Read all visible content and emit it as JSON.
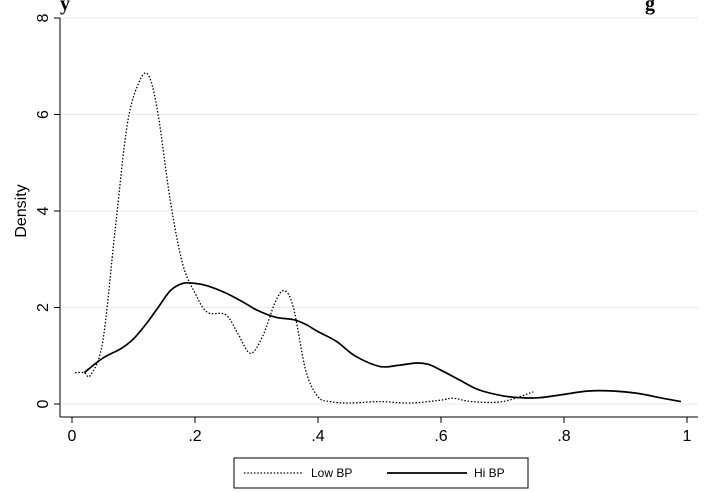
{
  "chart_data": {
    "type": "line",
    "title": "y g",
    "xlabel": "",
    "ylabel": "Density",
    "xlim": [
      0,
      1
    ],
    "ylim": [
      0,
      8
    ],
    "x_ticks": [
      {
        "value": 0,
        "label": "0"
      },
      {
        "value": 0.2,
        "label": ".2"
      },
      {
        "value": 0.4,
        "label": ".4"
      },
      {
        "value": 0.6,
        "label": ".6"
      },
      {
        "value": 0.8,
        "label": ".8"
      },
      {
        "value": 1,
        "label": "1"
      }
    ],
    "y_ticks": [
      {
        "value": 0,
        "label": "0"
      },
      {
        "value": 2,
        "label": "2"
      },
      {
        "value": 4,
        "label": "4"
      },
      {
        "value": 6,
        "label": "6"
      },
      {
        "value": 8,
        "label": "8"
      }
    ],
    "grid": "horizontal",
    "legend_position": "bottom",
    "series": [
      {
        "name": "Low BP",
        "line_style": "dotted",
        "color": "#000000",
        "x": [
          0.005,
          0.02,
          0.03,
          0.05,
          0.07,
          0.09,
          0.11,
          0.125,
          0.14,
          0.16,
          0.18,
          0.2,
          0.22,
          0.25,
          0.27,
          0.29,
          0.31,
          0.33,
          0.345,
          0.36,
          0.38,
          0.4,
          0.42,
          0.45,
          0.5,
          0.55,
          0.6,
          0.62,
          0.65,
          0.7,
          0.75
        ],
        "y": [
          0.65,
          0.65,
          0.6,
          1.3,
          3.6,
          5.8,
          6.7,
          6.8,
          6.0,
          4.2,
          2.9,
          2.3,
          1.9,
          1.85,
          1.45,
          1.05,
          1.4,
          2.1,
          2.35,
          2.0,
          0.7,
          0.15,
          0.05,
          0.02,
          0.05,
          0.02,
          0.08,
          0.12,
          0.05,
          0.05,
          0.25
        ]
      },
      {
        "name": "Hi BP",
        "line_style": "solid",
        "color": "#000000",
        "x": [
          0.02,
          0.05,
          0.08,
          0.1,
          0.12,
          0.14,
          0.16,
          0.18,
          0.2,
          0.22,
          0.25,
          0.28,
          0.3,
          0.33,
          0.36,
          0.38,
          0.4,
          0.43,
          0.46,
          0.5,
          0.53,
          0.56,
          0.58,
          0.6,
          0.63,
          0.66,
          0.7,
          0.73,
          0.76,
          0.8,
          0.84,
          0.88,
          0.92,
          0.96,
          0.99
        ],
        "y": [
          0.65,
          0.95,
          1.15,
          1.35,
          1.65,
          2.0,
          2.35,
          2.5,
          2.5,
          2.45,
          2.3,
          2.1,
          1.95,
          1.8,
          1.75,
          1.65,
          1.5,
          1.3,
          1.0,
          0.78,
          0.8,
          0.85,
          0.82,
          0.7,
          0.5,
          0.3,
          0.17,
          0.13,
          0.13,
          0.2,
          0.27,
          0.27,
          0.22,
          0.12,
          0.05
        ]
      }
    ]
  }
}
